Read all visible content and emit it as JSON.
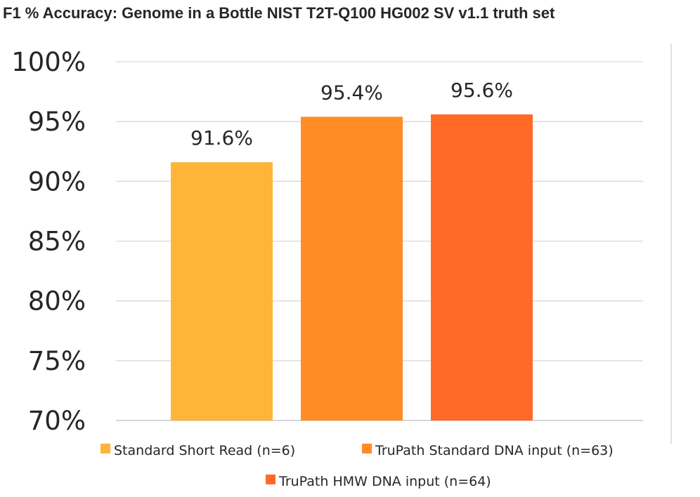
{
  "chart_data": {
    "type": "bar",
    "title": "F1 % Accuracy: Genome in a Bottle NIST T2T-Q100 HG002 SV v1.1 truth set",
    "ylim": [
      70,
      100
    ],
    "y_ticks": [
      "100%",
      "95%",
      "90%",
      "85%",
      "80%",
      "75%",
      "70%"
    ],
    "grid": true,
    "legend_position": "bottom",
    "series": [
      {
        "name": "Standard Short Read (n=6)",
        "value": 91.6,
        "data_label": "91.6%",
        "color": "#FFB43A"
      },
      {
        "name": "TruPath Standard DNA input (n=63)",
        "value": 95.4,
        "data_label": "95.4%",
        "color": "#FF8C25"
      },
      {
        "name": "TruPath HMW DNA input (n=64)",
        "value": 95.6,
        "data_label": "95.6%",
        "color": "#FF6A26"
      }
    ]
  }
}
